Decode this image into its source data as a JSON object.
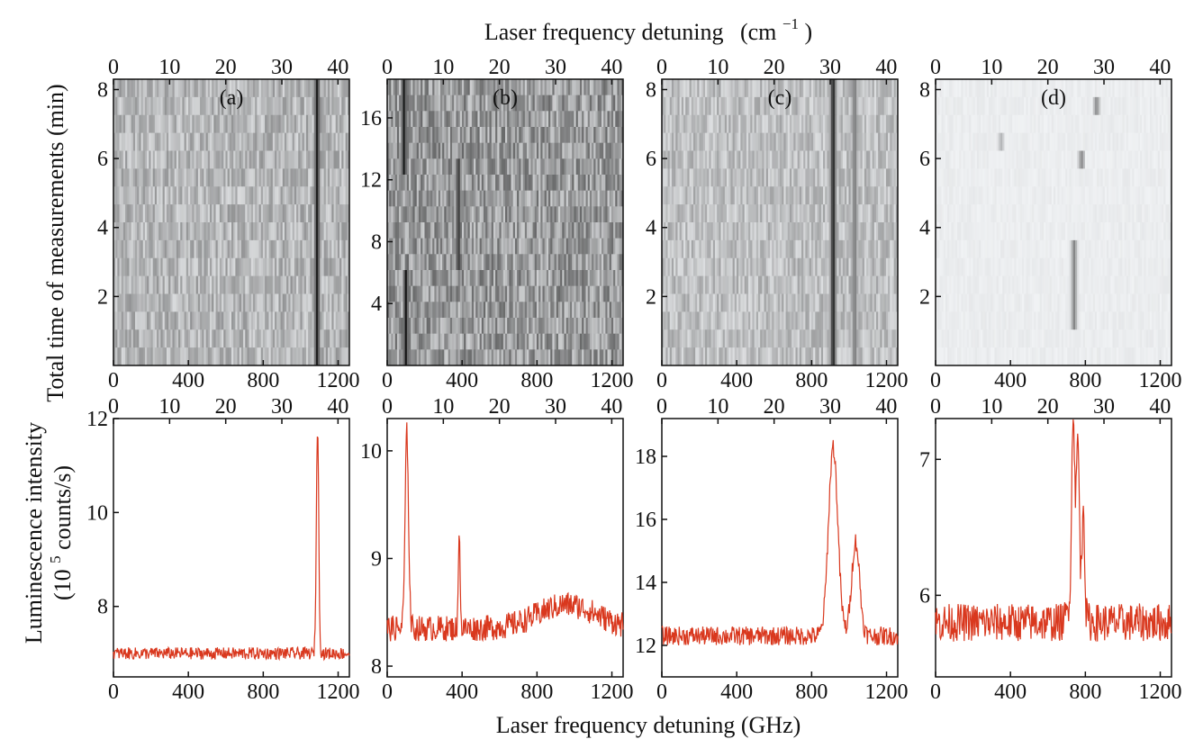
{
  "figure": {
    "top_xlabel": "Laser frequency detuning",
    "top_xlabel_unit": "(cm",
    "top_xlabel_exp": "−1",
    "top_xlabel_close": ")",
    "bottom_xlabel": "Laser frequency detuning  (GHz)",
    "heatmap_ylabel": "Total time of measurements  (min)",
    "spectrum_ylabel_line1": "Luminescence intensity",
    "spectrum_ylabel_line2_a": "(10",
    "spectrum_ylabel_line2_exp": "5",
    "spectrum_ylabel_line2_b": " counts/s)"
  },
  "colors": {
    "line": "#d9381e",
    "frame": "#111111",
    "heatmap_dark": "#141414",
    "heatmap_light": "#f4f6f8"
  },
  "chart_data": [
    {
      "type": "heatmap",
      "panel_label": "(a)",
      "x_range_ghz": [
        0,
        1260
      ],
      "x_ticks_ghz": [
        "0",
        "400",
        "800",
        "1200"
      ],
      "x_ticks_cm": [
        "0",
        "10",
        "20",
        "30",
        "40"
      ],
      "ylim": [
        0,
        8.3
      ],
      "y_ticks": [
        "2",
        "4",
        "6",
        "8"
      ],
      "rows": 16,
      "background_level": 0.35,
      "features": [
        {
          "ghz": 1088,
          "rows": [
            0,
            15
          ],
          "intensity": 1.0
        }
      ]
    },
    {
      "type": "heatmap",
      "panel_label": "(b)",
      "x_range_ghz": [
        0,
        1260
      ],
      "x_ticks_ghz": [
        "0",
        "400",
        "800",
        "1200"
      ],
      "x_ticks_cm": [
        "0",
        "10",
        "20",
        "30",
        "40"
      ],
      "ylim": [
        0,
        18.5
      ],
      "y_ticks": [
        "4",
        "8",
        "12",
        "16"
      ],
      "rows": 18,
      "background_level": 0.5,
      "features": [
        {
          "ghz": 100,
          "rows": [
            0,
            5
          ],
          "intensity": 1.0
        },
        {
          "ghz": 380,
          "rows": [
            6,
            12
          ],
          "intensity": 0.9
        },
        {
          "ghz": 90,
          "rows": [
            12,
            17
          ],
          "intensity": 1.0
        }
      ]
    },
    {
      "type": "heatmap",
      "panel_label": "(c)",
      "x_range_ghz": [
        0,
        1260
      ],
      "x_ticks_ghz": [
        "0",
        "400",
        "800",
        "1200"
      ],
      "x_ticks_cm": [
        "0",
        "10",
        "20",
        "30",
        "40"
      ],
      "ylim": [
        0,
        8.3
      ],
      "y_ticks": [
        "2",
        "4",
        "6",
        "8"
      ],
      "rows": 16,
      "background_level": 0.3,
      "features": [
        {
          "ghz": 915,
          "rows": [
            0,
            15
          ],
          "intensity": 1.0
        },
        {
          "ghz": 1030,
          "rows": [
            0,
            15
          ],
          "intensity": 0.6
        }
      ]
    },
    {
      "type": "heatmap",
      "panel_label": "(d)",
      "x_range_ghz": [
        0,
        1260
      ],
      "x_ticks_ghz": [
        "0",
        "400",
        "800",
        "1200"
      ],
      "x_ticks_cm": [
        "0",
        "10",
        "20",
        "30",
        "40"
      ],
      "ylim": [
        0,
        8.3
      ],
      "y_ticks": [
        "2",
        "4",
        "6",
        "8"
      ],
      "rows": 16,
      "background_level": 0.05,
      "features": [
        {
          "ghz": 740,
          "rows": [
            2,
            6
          ],
          "intensity": 0.5
        },
        {
          "ghz": 860,
          "rows": [
            14,
            14
          ],
          "intensity": 0.5
        },
        {
          "ghz": 780,
          "rows": [
            11,
            11
          ],
          "intensity": 0.5
        },
        {
          "ghz": 350,
          "rows": [
            12,
            12
          ],
          "intensity": 0.3
        }
      ]
    },
    {
      "type": "line",
      "x_range_ghz": [
        0,
        1260
      ],
      "x_ticks_ghz": [
        "0",
        "400",
        "800",
        "1200"
      ],
      "x_ticks_cm": [
        "0",
        "10",
        "20",
        "30",
        "40"
      ],
      "ylim": [
        6.5,
        12.0
      ],
      "y_ticks": [
        8,
        10,
        12
      ],
      "baseline": 7.0,
      "noise": 0.13,
      "peaks": [
        {
          "ghz": 1090,
          "height": 4.8,
          "width": 9
        }
      ]
    },
    {
      "type": "line",
      "x_range_ghz": [
        0,
        1260
      ],
      "x_ticks_ghz": [
        "0",
        "400",
        "800",
        "1200"
      ],
      "x_ticks_cm": [
        "0",
        "10",
        "20",
        "30",
        "40"
      ],
      "ylim": [
        7.9,
        10.3
      ],
      "y_ticks": [
        8,
        9,
        10
      ],
      "baseline": 8.35,
      "hump": {
        "ghz": 960,
        "height": 0.22,
        "width": 220
      },
      "noise": 0.12,
      "peaks": [
        {
          "ghz": 105,
          "height": 1.8,
          "width": 13
        },
        {
          "ghz": 385,
          "height": 1.0,
          "width": 6
        }
      ]
    },
    {
      "type": "line",
      "x_range_ghz": [
        0,
        1260
      ],
      "x_ticks_ghz": [
        "0",
        "400",
        "800",
        "1200"
      ],
      "x_ticks_cm": [
        "0",
        "10",
        "20",
        "30",
        "40"
      ],
      "ylim": [
        11.0,
        19.2
      ],
      "y_ticks": [
        12,
        14,
        16,
        18
      ],
      "baseline": 12.3,
      "noise": 0.3,
      "peaks": [
        {
          "ghz": 915,
          "height": 6.0,
          "width": 35
        },
        {
          "ghz": 1035,
          "height": 3.0,
          "width": 30
        }
      ]
    },
    {
      "type": "line",
      "x_range_ghz": [
        0,
        1260
      ],
      "x_ticks_ghz": [
        "0",
        "400",
        "800",
        "1200"
      ],
      "x_ticks_cm": [
        "0",
        "10",
        "20",
        "30",
        "40"
      ],
      "ylim": [
        5.4,
        7.3
      ],
      "y_ticks": [
        6,
        7
      ],
      "baseline": 5.8,
      "noise": 0.14,
      "peaks": [
        {
          "ghz": 735,
          "height": 1.2,
          "width": 10
        },
        {
          "ghz": 760,
          "height": 0.9,
          "width": 10
        },
        {
          "ghz": 790,
          "height": 0.8,
          "width": 8
        },
        {
          "ghz": 750,
          "height": 0.5,
          "width": 35
        }
      ]
    }
  ]
}
